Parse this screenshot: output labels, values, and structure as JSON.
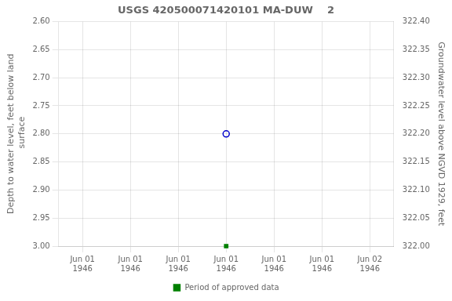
{
  "chart_data": {
    "type": "scatter",
    "title": "USGS 420500071420101 MA-DUW    2",
    "categories": [
      "Jun 01\n1946",
      "Jun 01\n1946",
      "Jun 01\n1946",
      "Jun 01\n1946",
      "Jun 01\n1946",
      "Jun 01\n1946",
      "Jun 02\n1946"
    ],
    "y_label": "Depth to water level, feet below land\n surface",
    "y2_label": "Groundwater level above NGVD 1929, feet",
    "ylim": [
      3.0,
      2.6
    ],
    "yticks": [
      {
        "value": 2.6,
        "label": "2.60"
      },
      {
        "value": 2.65,
        "label": "2.65"
      },
      {
        "value": 2.7,
        "label": "2.70"
      },
      {
        "value": 2.75,
        "label": "2.75"
      },
      {
        "value": 2.8,
        "label": "2.80"
      },
      {
        "value": 2.85,
        "label": "2.85"
      },
      {
        "value": 2.9,
        "label": "2.90"
      },
      {
        "value": 2.95,
        "label": "2.95"
      },
      {
        "value": 3.0,
        "label": "3.00"
      }
    ],
    "y2lim": [
      322.0,
      322.4
    ],
    "y2ticks": [
      {
        "value": 322.4,
        "label": "322.40"
      },
      {
        "value": 322.35,
        "label": "322.35"
      },
      {
        "value": 322.3,
        "label": "322.30"
      },
      {
        "value": 322.25,
        "label": "322.25"
      },
      {
        "value": 322.2,
        "label": "322.20"
      },
      {
        "value": 322.15,
        "label": "322.15"
      },
      {
        "value": 322.1,
        "label": "322.10"
      },
      {
        "value": 322.05,
        "label": "322.05"
      },
      {
        "value": 322.0,
        "label": "322.00"
      }
    ],
    "grid": true,
    "legend": "bottom",
    "series": [
      {
        "color": "#0000cc",
        "marker": "open-circle",
        "values": [
          null,
          null,
          null,
          2.8,
          null,
          null,
          null
        ]
      },
      {
        "name": "Period of approved data",
        "color": "#008000",
        "marker": "square",
        "values": [
          null,
          null,
          null,
          3.0,
          null,
          null,
          null
        ]
      }
    ]
  }
}
